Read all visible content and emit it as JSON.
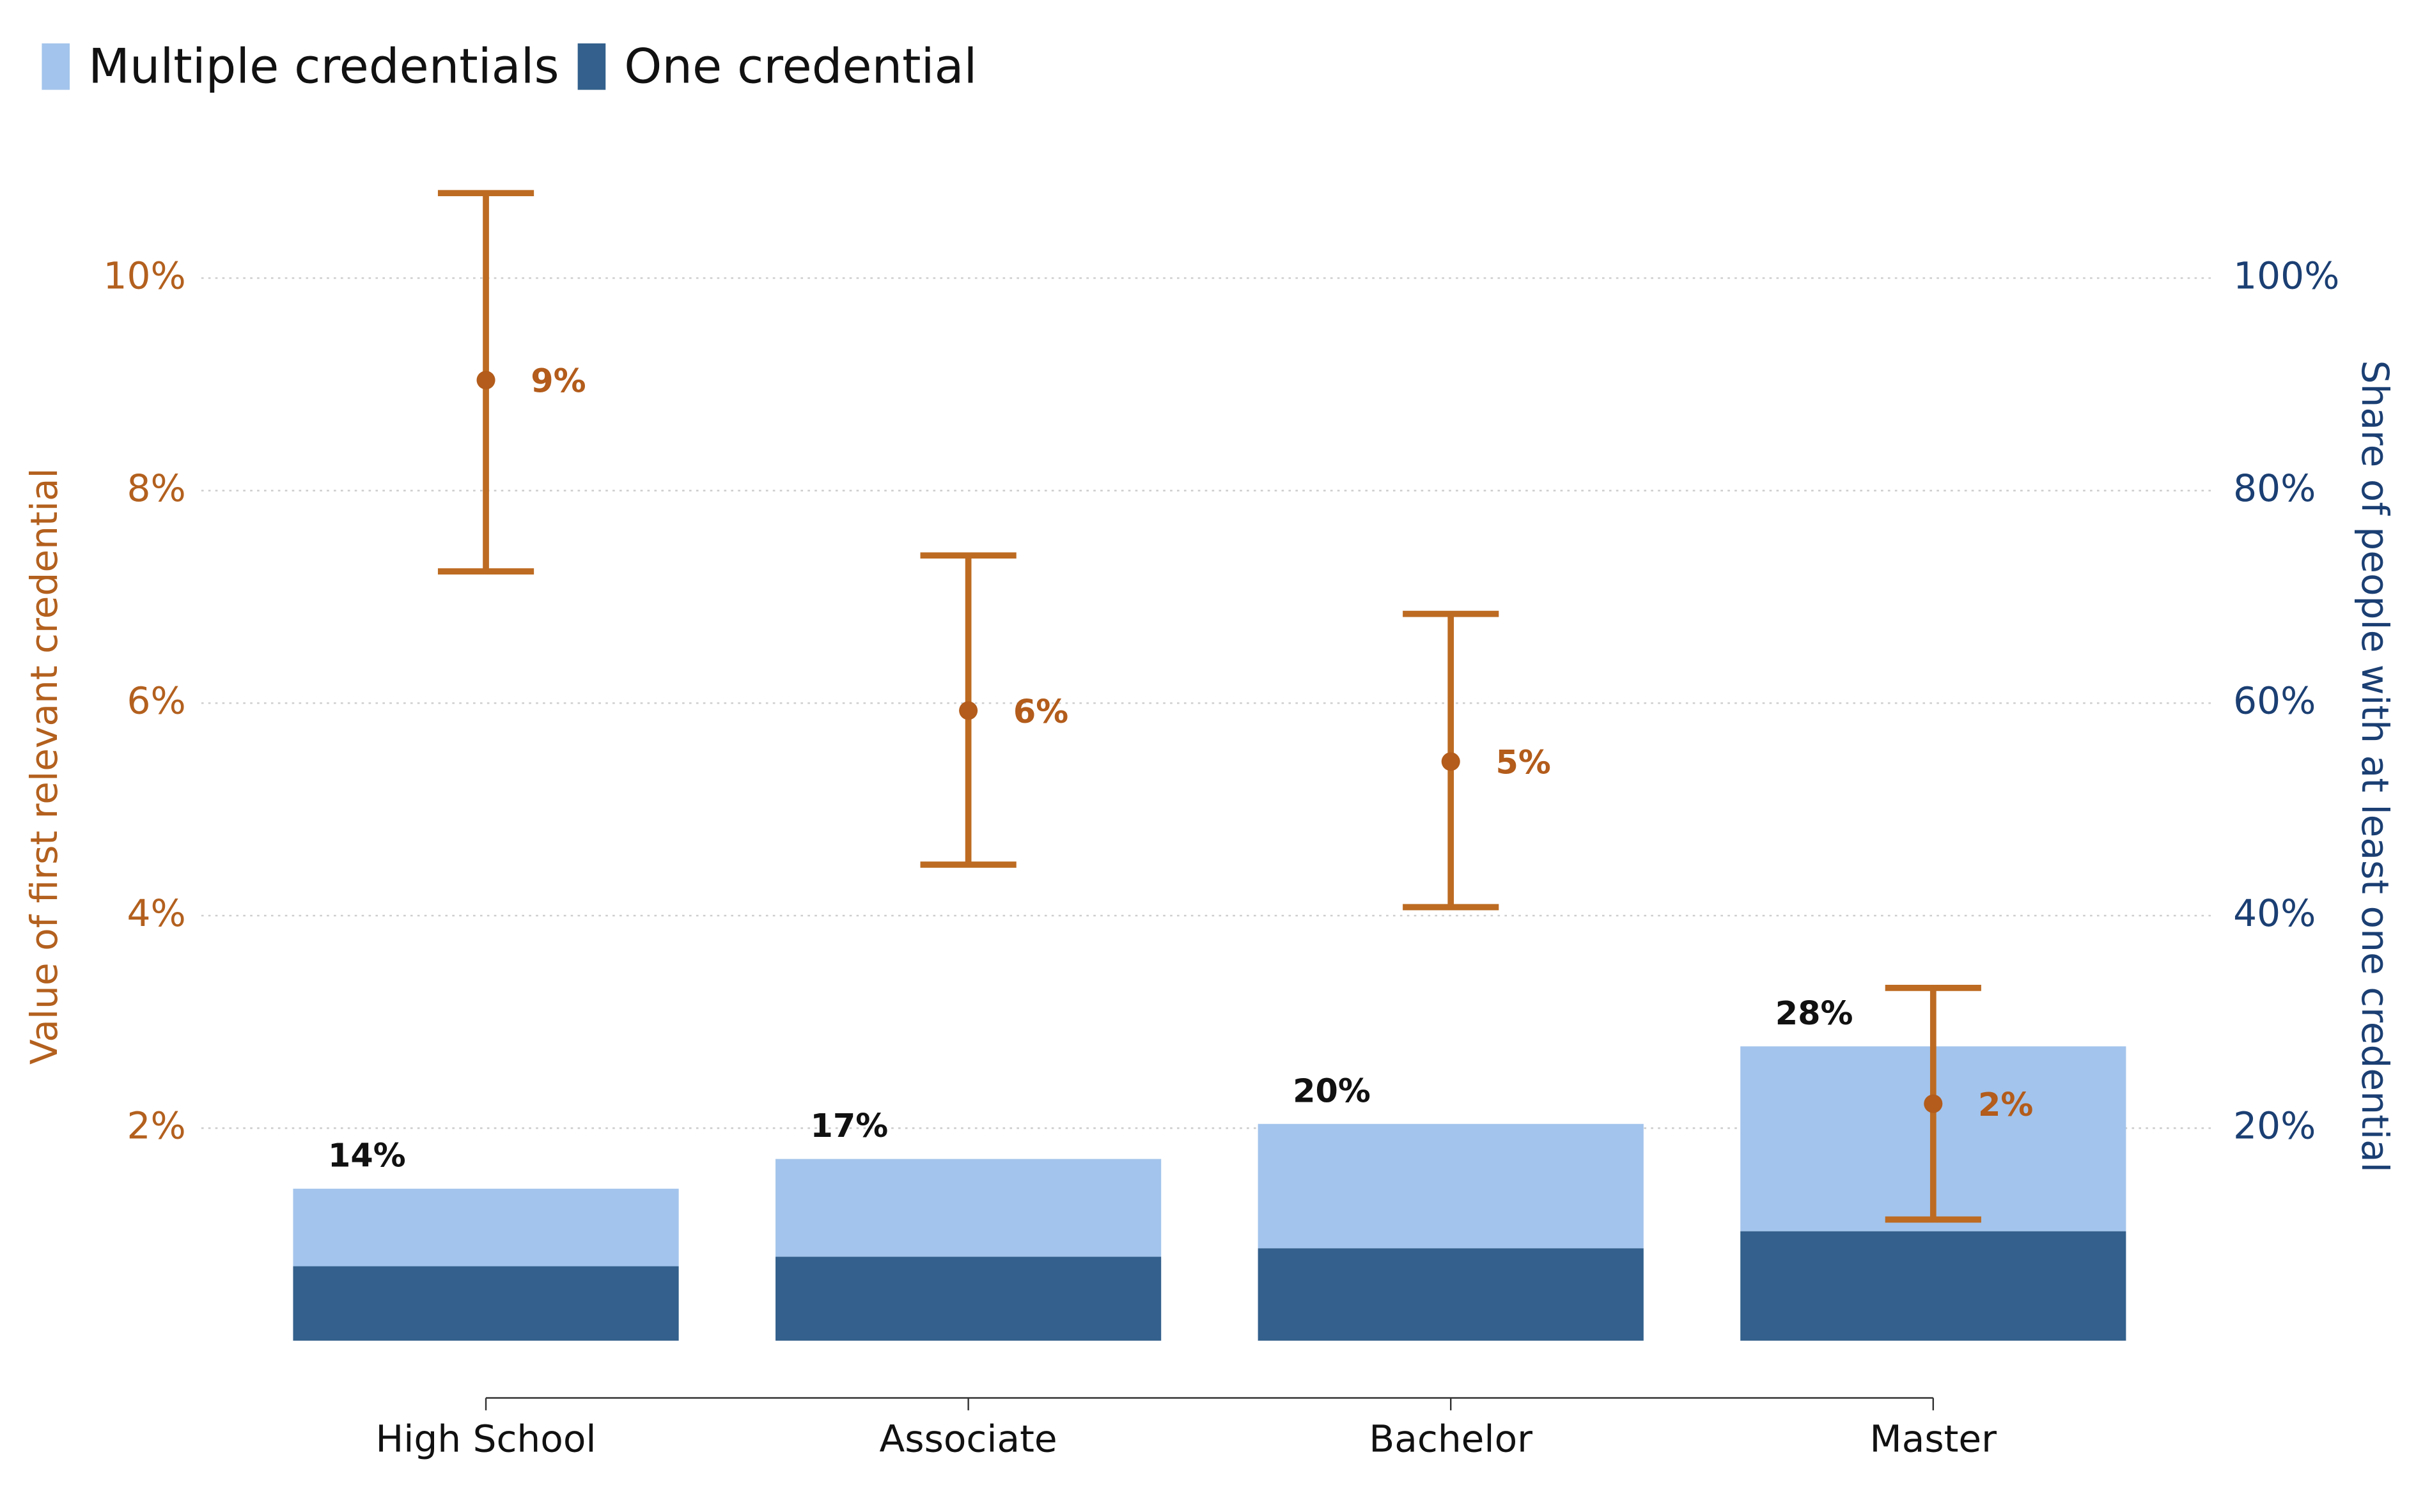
{
  "chart_data": {
    "type": "bar",
    "categories": [
      "High School",
      "Associate",
      "Bachelor",
      "Master"
    ],
    "series": [
      {
        "name": "Multiple credentials",
        "color": "#a3c4ec",
        "axis": "y2",
        "values": [
          7.3,
          9.2,
          11.7,
          17.4
        ]
      },
      {
        "name": "One credential",
        "color": "#33608c",
        "axis": "y2",
        "values": [
          7.0,
          7.9,
          8.7,
          10.3
        ]
      }
    ],
    "total_labels": [
      "14%",
      "17%",
      "20%",
      "28%"
    ],
    "errorbars": {
      "type": "errorbar",
      "color": "#bd6b22",
      "axis": "y",
      "values": [
        9.04,
        5.93,
        5.45,
        2.23
      ],
      "lower": [
        7.24,
        4.48,
        4.08,
        1.14
      ],
      "upper": [
        10.8,
        7.39,
        6.84,
        3.32
      ],
      "value_labels": [
        "9%",
        "6%",
        "5%",
        "2%"
      ]
    },
    "ylabel": "Value of first relevant credential",
    "y2label": "Share of people with at least one credential",
    "ylim": [
      0,
      11
    ],
    "yticks": [
      {
        "value": 2,
        "label": "2%"
      },
      {
        "value": 4,
        "label": "4%"
      },
      {
        "value": 6,
        "label": "6%"
      },
      {
        "value": 8,
        "label": "8%"
      },
      {
        "value": 10,
        "label": "10%"
      }
    ],
    "y2lim": [
      0,
      110
    ],
    "y2ticks": [
      {
        "value": 20,
        "label": "20%"
      },
      {
        "value": 40,
        "label": "40%"
      },
      {
        "value": 60,
        "label": "60%"
      },
      {
        "value": 80,
        "label": "80%"
      },
      {
        "value": 100,
        "label": "100%"
      }
    ],
    "grid": true,
    "legend": "top-left"
  }
}
